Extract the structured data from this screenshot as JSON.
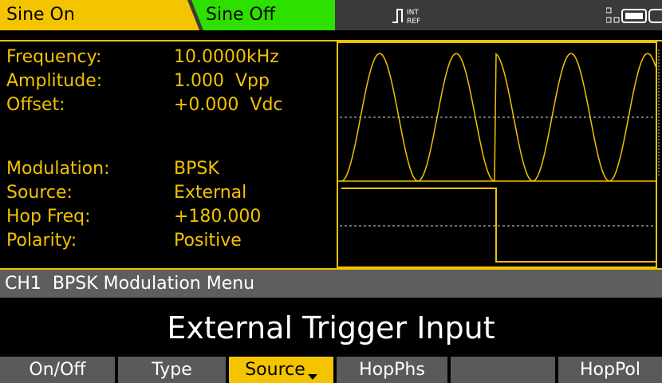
{
  "header": {
    "tabs": [
      "Sine On",
      "Sine Off"
    ],
    "ref": [
      "INT",
      "REF"
    ]
  },
  "params": [
    {
      "label": "Frequency:",
      "value": "10.0000kHz"
    },
    {
      "label": "Amplitude:",
      "value": "1.000  Vpp"
    },
    {
      "label": "Offset:",
      "value": "+0.000  Vdc"
    },
    {
      "label": "Modulation:",
      "value": "BPSK"
    },
    {
      "label": "Source:",
      "value": "External"
    },
    {
      "label": "Hop Freq:",
      "value": "+180.000"
    },
    {
      "label": "Polarity:",
      "value": "Positive"
    }
  ],
  "menu_title": "CH1  BPSK Modulation Menu",
  "message": "External Trigger Input",
  "softkeys": [
    "On/Off",
    "Type",
    "Source",
    "HopPhs",
    "",
    "HopPol"
  ]
}
